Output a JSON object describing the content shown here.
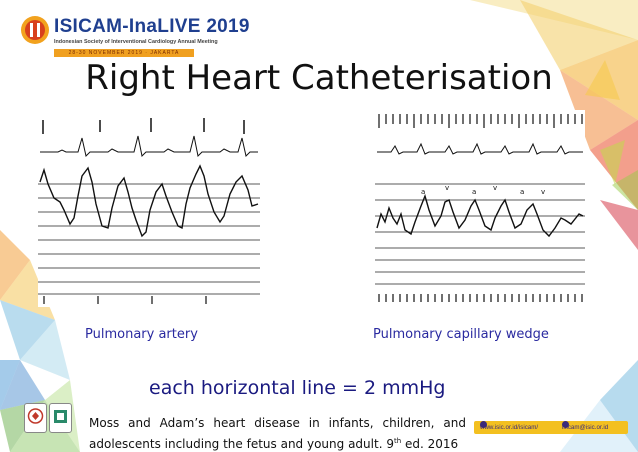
{
  "header": {
    "logo_name_part1": "ISICAM-InaL",
    "logo_name_part2": "IVE",
    "logo_year": "2019",
    "logo_subtitle": "Indonesian Society of Interventional Cardiology Annual Meeting",
    "logo_dates": "28-30 NOVEMBER 2019 · JAKARTA"
  },
  "slide": {
    "title": "Right Heart Catheterisation",
    "left_caption": "Pulmonary artery",
    "right_caption": "Pulmonary capillary wedge",
    "note": "each horizontal line = 2 mmHg",
    "reference_text": "Moss and Adam’s heart disease in infants, children, and adolescents including the fetus and young adult. 9",
    "reference_sup": "th",
    "reference_tail": " ed. 2016",
    "wedge_wave_labels": [
      "a",
      "v",
      "a",
      "v",
      "a",
      "v"
    ]
  },
  "footer": {
    "website": "www.isic.or.id/isicam/",
    "email": "isicam@isic.or.id"
  },
  "colors": {
    "title": "#111111",
    "caption": "#2a2aa0",
    "brand": "#1f3f8f",
    "footer_bar": "#f3c020"
  }
}
